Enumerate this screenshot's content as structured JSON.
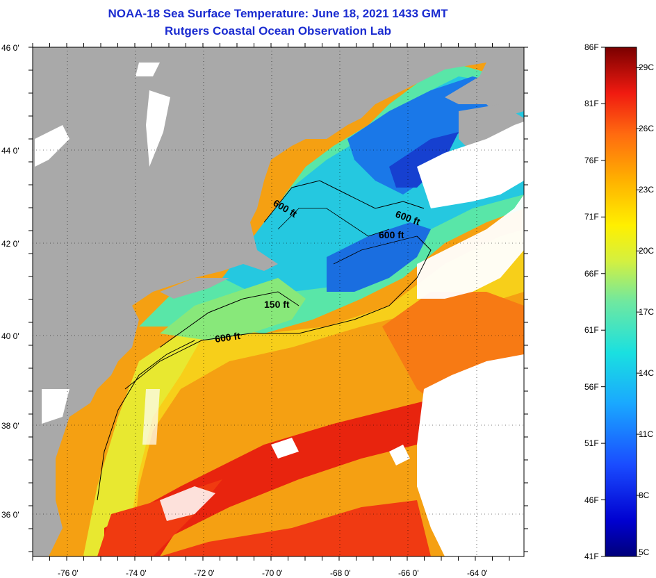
{
  "title": "NOAA-18 Sea Surface Temperature:  June 18, 2021 1433 GMT",
  "subtitle": "Rutgers Coastal Ocean Observation Lab",
  "lat_labels": [
    "46 0'",
    "44 0'",
    "42 0'",
    "40 0'",
    "38 0'",
    "36 0'"
  ],
  "lon_labels": [
    "-76 0'",
    "-74 0'",
    "-72 0'",
    "-70 0'",
    "-68 0'",
    "-66 0'",
    "-64 0'"
  ],
  "contour_labels": [
    "600 ft",
    "600 ft",
    "600 ft",
    "150 ft",
    "600 ft"
  ],
  "colorbar": {
    "fahrenheit": [
      "86F",
      "81F",
      "76F",
      "71F",
      "66F",
      "61F",
      "56F",
      "51F",
      "46F",
      "41F"
    ],
    "celsius": [
      "29C",
      "26C",
      "23C",
      "20C",
      "17C",
      "14C",
      "11C",
      "8C",
      "5C"
    ],
    "range_f": [
      41,
      86
    ],
    "range_c": [
      5,
      30
    ]
  },
  "colors": {
    "land": "#a9a9a9",
    "cloud": "#ffffff",
    "title": "#1a2bd0"
  }
}
